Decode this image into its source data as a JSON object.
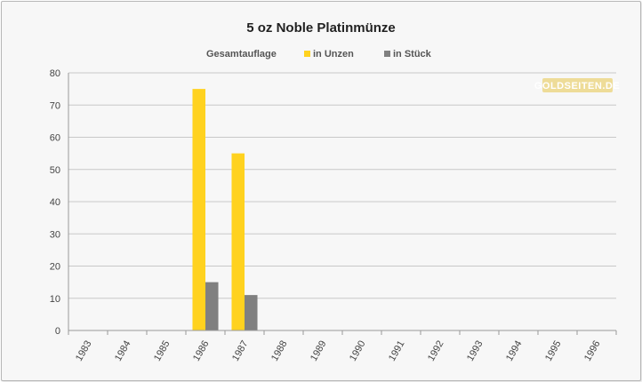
{
  "chart_data": {
    "type": "bar",
    "title": "5 oz Noble Platinmünze",
    "legend_title": "Gesamtauflage",
    "legend_position": "top",
    "grid": true,
    "categories": [
      "1983",
      "1984",
      "1985",
      "1986",
      "1987",
      "1988",
      "1989",
      "1990",
      "1991",
      "1992",
      "1993",
      "1994",
      "1995",
      "1996"
    ],
    "series": [
      {
        "name": "in Unzen",
        "color": "#ffd21f",
        "values": [
          0,
          0,
          0,
          75,
          55,
          0,
          0,
          0,
          0,
          0,
          0,
          0,
          0,
          0
        ]
      },
      {
        "name": "in Stück",
        "color": "#808080",
        "values": [
          0,
          0,
          0,
          15,
          11,
          0,
          0,
          0,
          0,
          0,
          0,
          0,
          0,
          0
        ]
      }
    ],
    "ylim": [
      0,
      80
    ],
    "yticks": [
      0,
      10,
      20,
      30,
      40,
      50,
      60,
      70,
      80
    ],
    "xlabel": "",
    "ylabel": ""
  },
  "watermark": {
    "text": "GOLDSEITEN.DE",
    "color": "#e8c64a"
  }
}
